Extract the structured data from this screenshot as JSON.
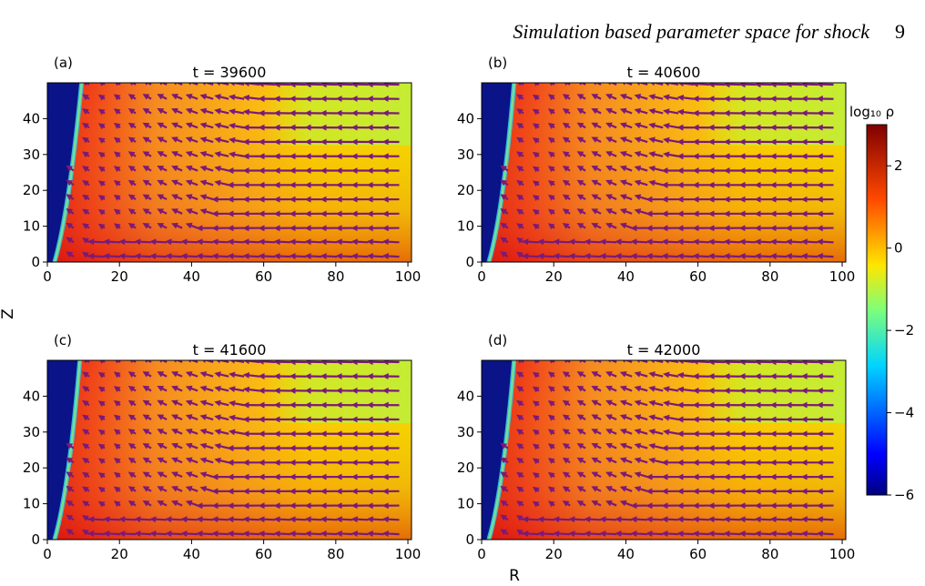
{
  "running_head": {
    "title": "Simulation based parameter space for shock",
    "page_number": "9"
  },
  "figure": {
    "x_axis_label": "R",
    "y_axis_label": "Z",
    "colorbar": {
      "label": "log₁₀ ρ",
      "range": [
        -6,
        3
      ],
      "ticks": [
        "2",
        "0",
        "−2",
        "−4",
        "−6"
      ],
      "colormap": "jet"
    },
    "panels": [
      {
        "letter": "(a)",
        "title": "t = 39600",
        "front_r": 9.5
      },
      {
        "letter": "(b)",
        "title": "t = 40600",
        "front_r": 9.0
      },
      {
        "letter": "(c)",
        "title": "t = 41600",
        "front_r": 9.0
      },
      {
        "letter": "(d)",
        "title": "t = 42000",
        "front_r": 9.0
      }
    ],
    "x_ticks": [
      "0",
      "20",
      "40",
      "60",
      "80",
      "100"
    ],
    "y_ticks": [
      "0",
      "10",
      "20",
      "30",
      "40"
    ],
    "x_range": [
      0,
      101
    ],
    "y_range": [
      0,
      50
    ],
    "arrow_color": "#7a1a78"
  }
}
